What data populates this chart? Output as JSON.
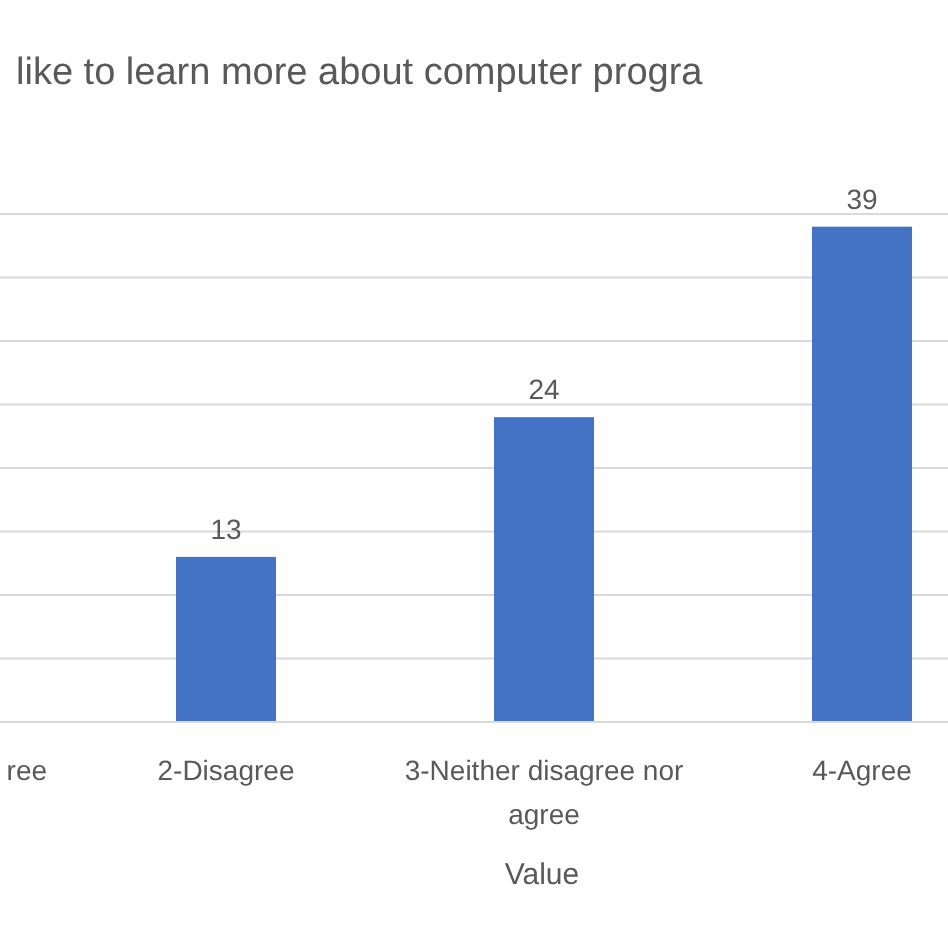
{
  "chart_data": {
    "type": "bar",
    "title": "like to learn more about computer progra",
    "xlabel": "Value",
    "categories": [
      "ree",
      "2-Disagree",
      "3-Neither disagree nor agree",
      "4-Agree"
    ],
    "values": [
      null,
      13,
      24,
      39
    ],
    "color": "#4472c4",
    "ylim": [
      0,
      40
    ],
    "yticks": [
      0,
      5,
      10,
      15,
      20,
      25,
      30,
      35,
      40
    ],
    "grid": "y",
    "tick_labels": "x",
    "data_labels": true
  }
}
